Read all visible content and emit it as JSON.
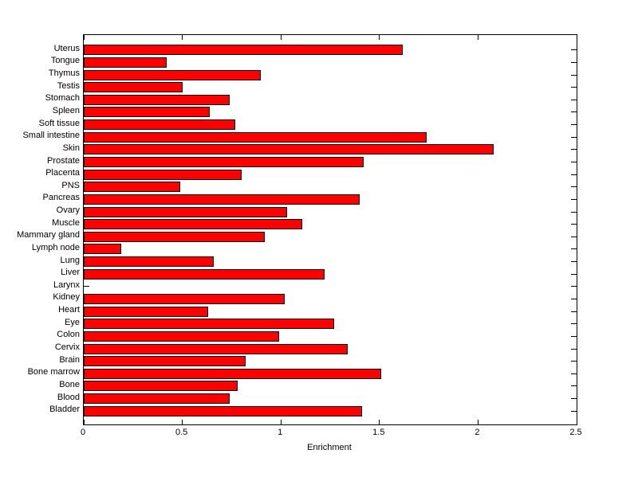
{
  "figure": {
    "background_color": "#ffffff",
    "plot_background_color": "#ffffff",
    "axis_color": "#000000"
  },
  "chart_data": {
    "type": "bar",
    "orientation": "horizontal",
    "title": "",
    "xlabel": "Enrichment",
    "ylabel": "",
    "xlim": [
      0,
      2.5
    ],
    "xticks": [
      0,
      0.5,
      1,
      1.5,
      2,
      2.5
    ],
    "xtick_labels": [
      "0",
      "0.5",
      "1",
      "1.5",
      "2",
      "2.5"
    ],
    "grid": false,
    "legend": null,
    "bar_color": "#ff0000",
    "bar_edge_color": "#000000",
    "category_order": "top-to-bottom",
    "categories": [
      "Uterus",
      "Tongue",
      "Thymus",
      "Testis",
      "Stomach",
      "Spleen",
      "Soft tissue",
      "Small intestine",
      "Skin",
      "Prostate",
      "Placenta",
      "PNS",
      "Pancreas",
      "Ovary",
      "Muscle",
      "Mammary gland",
      "Lymph node",
      "Lung",
      "Liver",
      "Larynx",
      "Kidney",
      "Heart",
      "Eye",
      "Colon",
      "Cervix",
      "Brain",
      "Bone marrow",
      "Bone",
      "Blood",
      "Bladder"
    ],
    "values": [
      1.62,
      0.42,
      0.9,
      0.5,
      0.74,
      0.64,
      0.77,
      1.74,
      2.08,
      1.42,
      0.8,
      0.49,
      1.4,
      1.03,
      1.11,
      0.92,
      0.19,
      0.66,
      1.22,
      0.0,
      1.02,
      0.63,
      1.27,
      0.99,
      1.34,
      0.82,
      1.51,
      0.78,
      0.74,
      1.41
    ]
  }
}
